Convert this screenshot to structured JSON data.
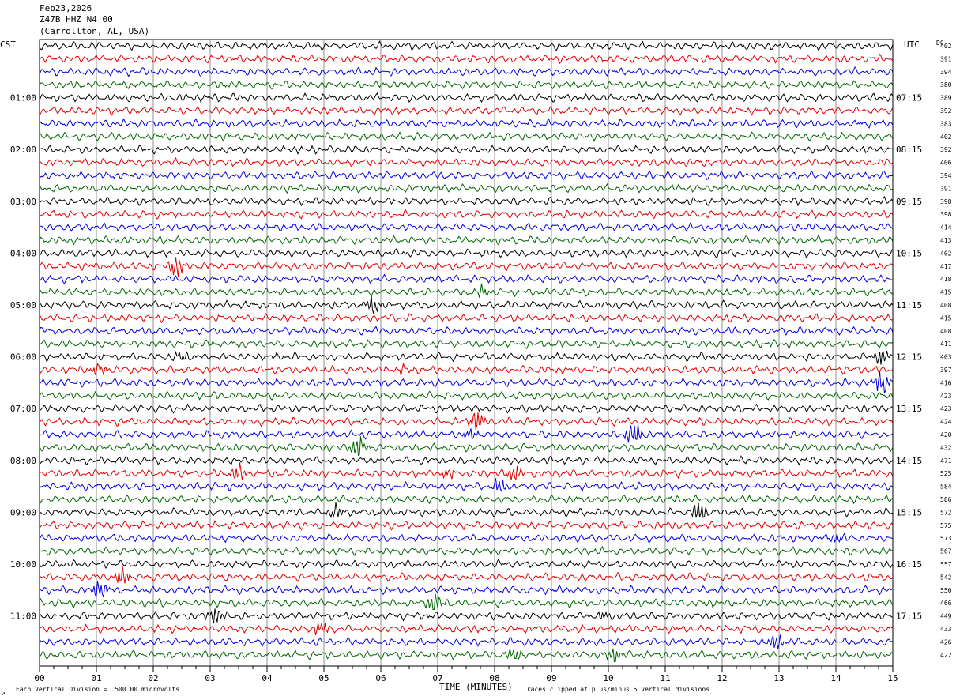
{
  "header": {
    "date": "Feb23,2026",
    "station": "Z47B HHZ N4 00",
    "location": "(Carrollton, AL, USA)"
  },
  "footer": {
    "scale_note": "Each Vertical Division =  500.00 microvolts",
    "clip_note": "Traces clipped at plus/minus 5 vertical divisions",
    "corner_mark": "↗"
  },
  "chart_data": {
    "type": "line",
    "title": "",
    "xlabel": "TIME (MINUTES)",
    "left_label": "CST",
    "right_label": "UTC",
    "dc_label": "DC",
    "xlim": [
      0,
      15
    ],
    "x_ticks": [
      "00",
      "01",
      "02",
      "03",
      "04",
      "05",
      "06",
      "07",
      "08",
      "09",
      "10",
      "11",
      "12",
      "13",
      "14",
      "15"
    ],
    "grid": true,
    "trace_colors": [
      "#000000",
      "#dd0000",
      "#0000dd",
      "#006600"
    ],
    "left_hours": [
      "01:00",
      "02:00",
      "03:00",
      "04:00",
      "05:00",
      "06:00",
      "07:00",
      "08:00",
      "09:00",
      "10:00",
      "11:00"
    ],
    "right_hours": [
      "07:15",
      "08:15",
      "09:15",
      "10:15",
      "11:15",
      "12:15",
      "13:15",
      "14:15",
      "15:15",
      "16:15",
      "17:15"
    ],
    "dc_values": [
      402,
      391,
      394,
      380,
      389,
      392,
      383,
      402,
      392,
      406,
      394,
      391,
      398,
      398,
      414,
      413,
      402,
      417,
      418,
      415,
      408,
      415,
      408,
      411,
      403,
      397,
      416,
      423,
      423,
      424,
      420,
      432,
      471,
      525,
      584,
      586,
      572,
      575,
      573,
      567,
      557,
      542,
      550,
      466,
      449,
      433,
      426,
      422
    ],
    "events": [
      {
        "trace": 17,
        "minute": 2.4,
        "amp": 3.2
      },
      {
        "trace": 19,
        "minute": 7.8,
        "amp": 1.4
      },
      {
        "trace": 20,
        "minute": 5.85,
        "amp": 2.4
      },
      {
        "trace": 24,
        "minute": 2.5,
        "amp": 1.2
      },
      {
        "trace": 24,
        "minute": 14.8,
        "amp": 2.6
      },
      {
        "trace": 25,
        "minute": 1.05,
        "amp": 1.5
      },
      {
        "trace": 25,
        "minute": 6.4,
        "amp": 1.0
      },
      {
        "trace": 26,
        "minute": 14.8,
        "amp": 3.2
      },
      {
        "trace": 29,
        "minute": 7.7,
        "amp": 2.8
      },
      {
        "trace": 30,
        "minute": 7.6,
        "amp": 1.3
      },
      {
        "trace": 30,
        "minute": 10.45,
        "amp": 3.4
      },
      {
        "trace": 31,
        "minute": 5.6,
        "amp": 2.6
      },
      {
        "trace": 33,
        "minute": 3.5,
        "amp": 2.0
      },
      {
        "trace": 33,
        "minute": 7.2,
        "amp": 1.2
      },
      {
        "trace": 33,
        "minute": 8.35,
        "amp": 2.4
      },
      {
        "trace": 34,
        "minute": 8.1,
        "amp": 2.2
      },
      {
        "trace": 36,
        "minute": 5.2,
        "amp": 1.8
      },
      {
        "trace": 36,
        "minute": 11.6,
        "amp": 2.6
      },
      {
        "trace": 38,
        "minute": 14.0,
        "amp": 1.4
      },
      {
        "trace": 41,
        "minute": 1.45,
        "amp": 2.6
      },
      {
        "trace": 42,
        "minute": 1.05,
        "amp": 2.6
      },
      {
        "trace": 43,
        "minute": 6.95,
        "amp": 2.6
      },
      {
        "trace": 44,
        "minute": 3.1,
        "amp": 2.4
      },
      {
        "trace": 44,
        "minute": 9.9,
        "amp": 1.0
      },
      {
        "trace": 45,
        "minute": 4.95,
        "amp": 1.8
      },
      {
        "trace": 46,
        "minute": 12.95,
        "amp": 2.0
      },
      {
        "trace": 47,
        "minute": 8.35,
        "amp": 1.8
      },
      {
        "trace": 47,
        "minute": 10.1,
        "amp": 1.8
      }
    ]
  }
}
